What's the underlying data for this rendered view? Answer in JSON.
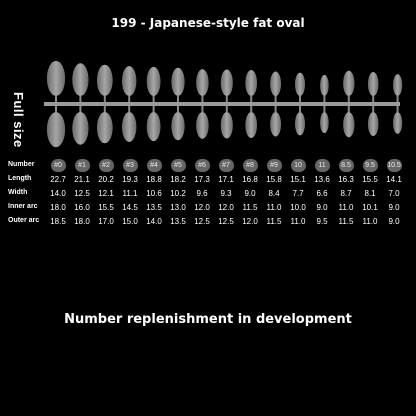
{
  "title": "199 - Japanese-style fat oval",
  "side_label": "Full size",
  "rows": {
    "number": {
      "label": "Number",
      "values": [
        "#0",
        "#1",
        "#2",
        "#3",
        "#4",
        "#5",
        "#6",
        "#7",
        "#8",
        "#9",
        "10",
        "11",
        "8.5",
        "9.5",
        "10.5"
      ]
    },
    "length": {
      "label": "Length",
      "values": [
        "22.7",
        "21.1",
        "20.2",
        "19.3",
        "18.8",
        "18.2",
        "17.3",
        "17.1",
        "16.8",
        "15.8",
        "15.1",
        "13.6",
        "16.3",
        "15.5",
        "14.1"
      ]
    },
    "width": {
      "label": "Width",
      "values": [
        "14.0",
        "12.5",
        "12.1",
        "11.1",
        "10.6",
        "10.2",
        "9.6",
        "9.3",
        "9.0",
        "8.4",
        "7.7",
        "6.6",
        "8.7",
        "8.1",
        "7.0"
      ]
    },
    "inner_arc": {
      "label": "Inner arc",
      "values": [
        "18.0",
        "16.0",
        "15.5",
        "14.5",
        "13.5",
        "13.0",
        "12.0",
        "12.0",
        "11.5",
        "11.0",
        "10.0",
        "9.0",
        "11.0",
        "10.1",
        "9.0"
      ]
    },
    "outer_arc": {
      "label": "Outer arc",
      "values": [
        "18.5",
        "18.0",
        "17.0",
        "15.0",
        "14.0",
        "13.5",
        "12.5",
        "12.5",
        "12.0",
        "11.5",
        "11.0",
        "9.5",
        "11.5",
        "11.0",
        "9.0"
      ]
    }
  },
  "bottom_text": "Number replenishment in development"
}
